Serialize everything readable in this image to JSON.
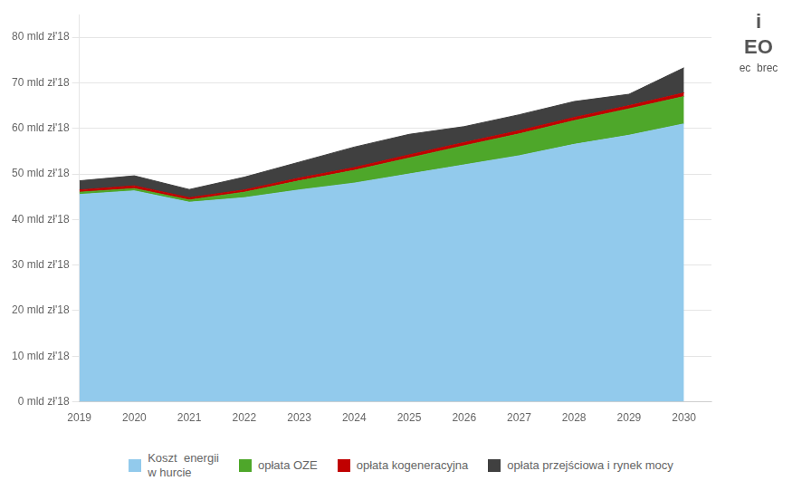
{
  "chart_data": {
    "type": "area",
    "stacked": true,
    "x": [
      2019,
      2020,
      2021,
      2022,
      2023,
      2024,
      2025,
      2026,
      2027,
      2028,
      2029,
      2030
    ],
    "series": [
      {
        "name": "Koszt  energii\nw hurcie",
        "color": "#92CAEC",
        "values": [
          45.5,
          46.3,
          43.8,
          44.8,
          46.5,
          48.0,
          50.0,
          52.0,
          54.0,
          56.5,
          58.5,
          61.0
        ]
      },
      {
        "name": "opłata OZE",
        "color": "#4ea72a",
        "values": [
          0.5,
          0.5,
          0.5,
          1.2,
          2.0,
          2.8,
          3.5,
          4.2,
          4.8,
          5.2,
          5.8,
          6.0
        ]
      },
      {
        "name": "opłata kogeneracyjna",
        "color": "#c00000",
        "values": [
          0.5,
          0.6,
          0.5,
          0.5,
          0.6,
          0.6,
          0.7,
          0.7,
          0.7,
          0.7,
          0.7,
          0.8
        ]
      },
      {
        "name": "opłata przejściowa i rynek mocy",
        "color": "#404040",
        "values": [
          2.0,
          2.2,
          1.8,
          2.8,
          3.5,
          4.5,
          4.5,
          3.5,
          3.5,
          3.5,
          2.5,
          5.5
        ]
      }
    ],
    "xlim": [
      2019,
      2030.5
    ],
    "xticks": [
      2019,
      2020,
      2021,
      2022,
      2023,
      2024,
      2025,
      2026,
      2027,
      2028,
      2029,
      2030
    ],
    "ylim": [
      0,
      85
    ],
    "yticks": [
      {
        "value": 0,
        "label": "0 mld zł'18"
      },
      {
        "value": 10,
        "label": "10 mld zł'18"
      },
      {
        "value": 20,
        "label": "20 mld zł'18"
      },
      {
        "value": 30,
        "label": "30 mld zł'18"
      },
      {
        "value": 40,
        "label": "40 mld zł'18"
      },
      {
        "value": 50,
        "label": "50 mld zł'18"
      },
      {
        "value": 60,
        "label": "60 mld zł'18"
      },
      {
        "value": 70,
        "label": "70 mld zł'18"
      },
      {
        "value": 80,
        "label": "80 mld zł'18"
      }
    ],
    "grid": "y",
    "legend": "bottom",
    "annotations": [
      "i",
      "EO",
      "ec  brec"
    ]
  }
}
